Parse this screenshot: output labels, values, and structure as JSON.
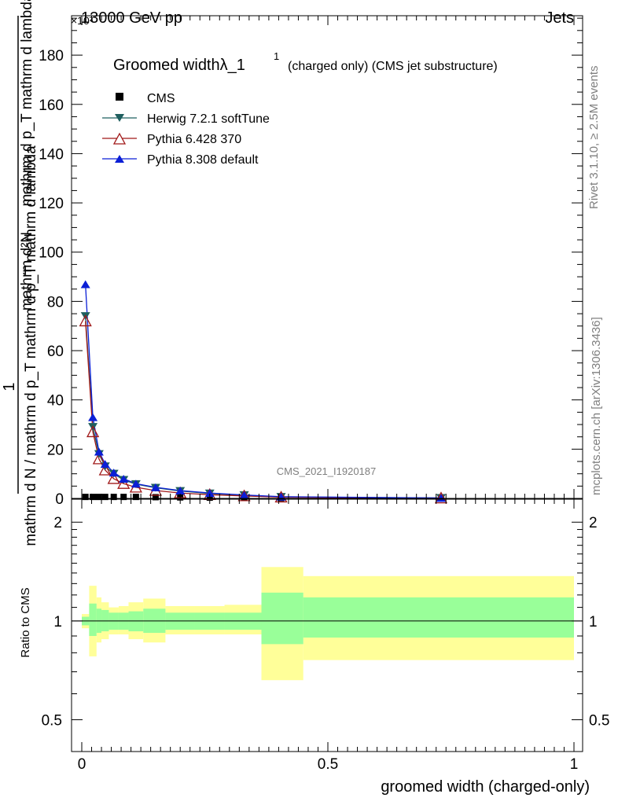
{
  "header": {
    "energy_label": "13000 GeV pp",
    "exponent_label": "×10³",
    "process_label": "Jets",
    "rivet_label": "Rivet 3.1.10, ≥ 2.5M events",
    "mcplots_label": "mcplots.cern.ch [arXiv:1306.3436]",
    "analysis_id": "CMS_2021_I1920187"
  },
  "chart_data": [
    {
      "type": "line",
      "title": "Groomed widthλ_1¹ (charged only) (CMS jet substructure)",
      "title_main": "Groomed widthλ_1",
      "title_sup": "1",
      "title_rest": "(charged only) (CMS jet substructure)",
      "ylabel_top": "1",
      "ylabel_bottom": "mathrm d N / mathrm d p_T mathrm d p_T mathrm d lambda",
      "ylabel_num": "mathrm d²N",
      "ylabel_den": "mathrm d p_T mathrm d lambda",
      "y_multiplier": 1000,
      "xlim": [
        0,
        1
      ],
      "ylim": [
        0,
        196
      ],
      "yticks": [
        0,
        20,
        40,
        60,
        80,
        100,
        120,
        140,
        160,
        180
      ],
      "legend_position": "top-left",
      "series": [
        {
          "name": "CMS",
          "color": "#000000",
          "marker": "square",
          "x": [
            0.0075,
            0.0225,
            0.035,
            0.0475,
            0.065,
            0.085,
            0.11,
            0.15,
            0.2,
            0.26,
            0.33,
            0.405,
            0.73
          ],
          "y": [
            0.6,
            0.6,
            0.6,
            0.6,
            0.6,
            0.6,
            0.6,
            0.5,
            0.4,
            0.3,
            0.2,
            0.1,
            0.05
          ]
        },
        {
          "name": "Herwig 7.2.1 softTune",
          "color": "#1f5f5f",
          "marker": "triangle-down",
          "x": [
            0.0075,
            0.0225,
            0.035,
            0.0475,
            0.065,
            0.085,
            0.11,
            0.15,
            0.2,
            0.26,
            0.33,
            0.405,
            0.73
          ],
          "y": [
            74,
            29,
            18,
            13,
            10,
            7.5,
            5.8,
            4.3,
            3.0,
            2.0,
            1.3,
            0.6,
            0.15
          ]
        },
        {
          "name": "Pythia 6.428 370",
          "color": "#a01818",
          "marker": "triangle-up-open",
          "x": [
            0.0075,
            0.0225,
            0.035,
            0.0475,
            0.065,
            0.085,
            0.11,
            0.15,
            0.2,
            0.26,
            0.33,
            0.405,
            0.73
          ],
          "y": [
            72,
            27,
            16,
            11.5,
            8,
            6,
            4.5,
            3.2,
            2.2,
            1.5,
            1.0,
            0.5,
            0.12
          ]
        },
        {
          "name": "Pythia 8.308 default",
          "color": "#0b1fd6",
          "marker": "triangle-up",
          "x": [
            0.0075,
            0.0225,
            0.035,
            0.0475,
            0.065,
            0.085,
            0.11,
            0.15,
            0.2,
            0.26,
            0.33,
            0.405,
            0.73
          ],
          "y": [
            87,
            33,
            19,
            14,
            10.5,
            8,
            6,
            4.5,
            3.2,
            2.2,
            1.4,
            0.7,
            0.18
          ]
        }
      ]
    },
    {
      "type": "area",
      "ylabel": "Ratio to CMS",
      "xlabel": "groomed width (charged-only)",
      "xlim": [
        0,
        1
      ],
      "ylim": [
        0.4,
        2.35
      ],
      "yscale": "log",
      "xticks": [
        0,
        0.5,
        1
      ],
      "xtick_labels": [
        "0",
        "0.5",
        "1"
      ],
      "yticks": [
        0.5,
        1,
        2
      ],
      "ytick_labels": [
        "0.5",
        "1",
        "2"
      ],
      "reference_line": 1,
      "band_colors": {
        "stat": "#99ff99",
        "total": "#ffff99"
      },
      "bins": [
        {
          "x_lo": 0.0,
          "x_hi": 0.015,
          "stat_lo": 0.97,
          "stat_hi": 1.03,
          "tot_lo": 0.95,
          "tot_hi": 1.05
        },
        {
          "x_lo": 0.015,
          "x_hi": 0.03,
          "stat_lo": 0.9,
          "stat_hi": 1.13,
          "tot_lo": 0.78,
          "tot_hi": 1.28
        },
        {
          "x_lo": 0.03,
          "x_hi": 0.04,
          "stat_lo": 0.92,
          "stat_hi": 1.09,
          "tot_lo": 0.86,
          "tot_hi": 1.18
        },
        {
          "x_lo": 0.04,
          "x_hi": 0.055,
          "stat_lo": 0.93,
          "stat_hi": 1.08,
          "tot_lo": 0.88,
          "tot_hi": 1.14
        },
        {
          "x_lo": 0.055,
          "x_hi": 0.075,
          "stat_lo": 0.94,
          "stat_hi": 1.06,
          "tot_lo": 0.91,
          "tot_hi": 1.1
        },
        {
          "x_lo": 0.075,
          "x_hi": 0.095,
          "stat_lo": 0.94,
          "stat_hi": 1.06,
          "tot_lo": 0.91,
          "tot_hi": 1.11
        },
        {
          "x_lo": 0.095,
          "x_hi": 0.125,
          "stat_lo": 0.93,
          "stat_hi": 1.07,
          "tot_lo": 0.88,
          "tot_hi": 1.14
        },
        {
          "x_lo": 0.125,
          "x_hi": 0.17,
          "stat_lo": 0.92,
          "stat_hi": 1.09,
          "tot_lo": 0.86,
          "tot_hi": 1.17
        },
        {
          "x_lo": 0.17,
          "x_hi": 0.23,
          "stat_lo": 0.94,
          "stat_hi": 1.06,
          "tot_lo": 0.91,
          "tot_hi": 1.11
        },
        {
          "x_lo": 0.23,
          "x_hi": 0.29,
          "stat_lo": 0.94,
          "stat_hi": 1.06,
          "tot_lo": 0.91,
          "tot_hi": 1.11
        },
        {
          "x_lo": 0.29,
          "x_hi": 0.365,
          "stat_lo": 0.94,
          "stat_hi": 1.06,
          "tot_lo": 0.91,
          "tot_hi": 1.12
        },
        {
          "x_lo": 0.365,
          "x_hi": 0.45,
          "stat_lo": 0.85,
          "stat_hi": 1.22,
          "tot_lo": 0.66,
          "tot_hi": 1.46
        },
        {
          "x_lo": 0.45,
          "x_hi": 1.0,
          "stat_lo": 0.89,
          "stat_hi": 1.18,
          "tot_lo": 0.76,
          "tot_hi": 1.37
        }
      ]
    }
  ]
}
